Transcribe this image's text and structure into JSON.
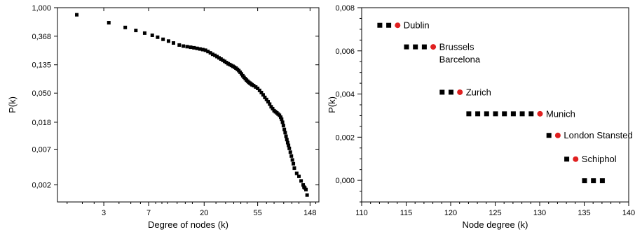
{
  "chart_data": [
    {
      "type": "scatter",
      "xlabel": "Degree of nodes (k)",
      "ylabel": "P(k)",
      "x_scale": "log",
      "y_scale": "log",
      "xlim": [
        1.25,
        175
      ],
      "ylim": [
        0.0011,
        1.0
      ],
      "x_ticks": [
        {
          "value": 3,
          "label": "3"
        },
        {
          "value": 7,
          "label": "7"
        },
        {
          "value": 20,
          "label": "20"
        },
        {
          "value": 55,
          "label": "55"
        },
        {
          "value": 148,
          "label": "148"
        }
      ],
      "y_ticks": [
        {
          "value": 1.0,
          "label": "1,000"
        },
        {
          "value": 0.368,
          "label": "0,368"
        },
        {
          "value": 0.135,
          "label": "0,135"
        },
        {
          "value": 0.05,
          "label": "0,050"
        },
        {
          "value": 0.018,
          "label": "0,018"
        },
        {
          "value": 0.007,
          "label": "0,007"
        },
        {
          "value": 0.002,
          "label": "0,002"
        }
      ],
      "marker_color": "#000000",
      "series": [
        {
          "points": [
            [
              1.8,
              0.78
            ],
            [
              3.3,
              0.59
            ],
            [
              4.5,
              0.5
            ],
            [
              5.5,
              0.45
            ],
            [
              6.5,
              0.41
            ],
            [
              7.5,
              0.38
            ],
            [
              8.3,
              0.355
            ],
            [
              9.2,
              0.33
            ],
            [
              10.2,
              0.31
            ],
            [
              11.2,
              0.29
            ],
            [
              12.5,
              0.27
            ],
            [
              13.5,
              0.26
            ],
            [
              14.5,
              0.255
            ],
            [
              15.5,
              0.25
            ],
            [
              16.5,
              0.245
            ],
            [
              17.5,
              0.24
            ],
            [
              18.5,
              0.235
            ],
            [
              19.5,
              0.23
            ],
            [
              20.5,
              0.225
            ],
            [
              21.5,
              0.215
            ],
            [
              22.5,
              0.205
            ],
            [
              23.5,
              0.195
            ],
            [
              24.5,
              0.188
            ],
            [
              25.5,
              0.18
            ],
            [
              26.5,
              0.172
            ],
            [
              27.5,
              0.165
            ],
            [
              28.5,
              0.158
            ],
            [
              29.5,
              0.152
            ],
            [
              30.5,
              0.146
            ],
            [
              31.5,
              0.14
            ],
            [
              32.5,
              0.136
            ],
            [
              33.5,
              0.132
            ],
            [
              34.5,
              0.128
            ],
            [
              35.5,
              0.124
            ],
            [
              36.5,
              0.12
            ],
            [
              37.5,
              0.115
            ],
            [
              38.5,
              0.11
            ],
            [
              39.5,
              0.104
            ],
            [
              40.5,
              0.098
            ],
            [
              41.5,
              0.092
            ],
            [
              42.5,
              0.087
            ],
            [
              43.5,
              0.083
            ],
            [
              44.5,
              0.079
            ],
            [
              45.5,
              0.076
            ],
            [
              46.5,
              0.073
            ],
            [
              47.5,
              0.071
            ],
            [
              48.5,
              0.069
            ],
            [
              49.5,
              0.067
            ],
            [
              51,
              0.065
            ],
            [
              53,
              0.062
            ],
            [
              55,
              0.059
            ],
            [
              57,
              0.055
            ],
            [
              59,
              0.051
            ],
            [
              61,
              0.047
            ],
            [
              63,
              0.043
            ],
            [
              65,
              0.04
            ],
            [
              67,
              0.037
            ],
            [
              69,
              0.034
            ],
            [
              71,
              0.031
            ],
            [
              73,
              0.029
            ],
            [
              75,
              0.027
            ],
            [
              77,
              0.026
            ],
            [
              79,
              0.025
            ],
            [
              81,
              0.024
            ],
            [
              83,
              0.023
            ],
            [
              85,
              0.0215
            ],
            [
              86.5,
              0.02
            ],
            [
              88,
              0.018
            ],
            [
              89.5,
              0.016
            ],
            [
              91,
              0.014
            ],
            [
              92.5,
              0.0125
            ],
            [
              94,
              0.011
            ],
            [
              95.5,
              0.0098
            ],
            [
              97,
              0.0088
            ],
            [
              98.5,
              0.008
            ],
            [
              100,
              0.0072
            ],
            [
              102,
              0.0063
            ],
            [
              104,
              0.0055
            ],
            [
              106,
              0.0048
            ],
            [
              108,
              0.0042
            ],
            [
              110,
              0.0036
            ],
            [
              115,
              0.003
            ],
            [
              120,
              0.0027
            ],
            [
              125,
              0.0023
            ],
            [
              130,
              0.002
            ],
            [
              132,
              0.00185
            ],
            [
              134,
              0.0018
            ],
            [
              137,
              0.0017
            ],
            [
              140,
              0.0014
            ]
          ]
        }
      ]
    },
    {
      "type": "scatter",
      "xlabel": "Node degree (k)",
      "ylabel": "P(k)",
      "xlim": [
        110,
        140
      ],
      "ylim": [
        -0.001,
        0.008
      ],
      "x_ticks": [
        {
          "value": 110,
          "label": "110"
        },
        {
          "value": 115,
          "label": "115"
        },
        {
          "value": 120,
          "label": "120"
        },
        {
          "value": 125,
          "label": "125"
        },
        {
          "value": 130,
          "label": "130"
        },
        {
          "value": 135,
          "label": "135"
        },
        {
          "value": 140,
          "label": "140"
        }
      ],
      "y_ticks": [
        {
          "value": 0.0,
          "label": "0,000"
        },
        {
          "value": 0.002,
          "label": "0,002"
        },
        {
          "value": 0.004,
          "label": "0,004"
        },
        {
          "value": 0.006,
          "label": "0,006"
        },
        {
          "value": 0.008,
          "label": "0,008"
        }
      ],
      "marker_color": "#000000",
      "highlight_color": "#e02020",
      "groups": [
        {
          "y": 0.0072,
          "x": [
            112,
            113
          ],
          "highlight_x": 114,
          "labels": [
            "Dublin"
          ]
        },
        {
          "y": 0.0062,
          "x": [
            115,
            116,
            117
          ],
          "highlight_x": 118,
          "labels": [
            "Brussels",
            "Barcelona"
          ]
        },
        {
          "y": 0.0041,
          "x": [
            119,
            120
          ],
          "highlight_x": 121,
          "labels": [
            "Zurich"
          ]
        },
        {
          "y": 0.0031,
          "x": [
            122,
            123,
            124,
            125,
            126,
            127,
            128,
            129
          ],
          "highlight_x": 130,
          "labels": [
            "Munich"
          ]
        },
        {
          "y": 0.0021,
          "x": [
            131
          ],
          "highlight_x": 132,
          "labels": [
            "London Stansted"
          ]
        },
        {
          "y": 0.001,
          "x": [
            133
          ],
          "highlight_x": 134,
          "labels": [
            "Schiphol"
          ]
        },
        {
          "y": 0.0,
          "x": [
            135,
            136,
            137
          ],
          "highlight_x": null,
          "labels": []
        }
      ]
    }
  ]
}
